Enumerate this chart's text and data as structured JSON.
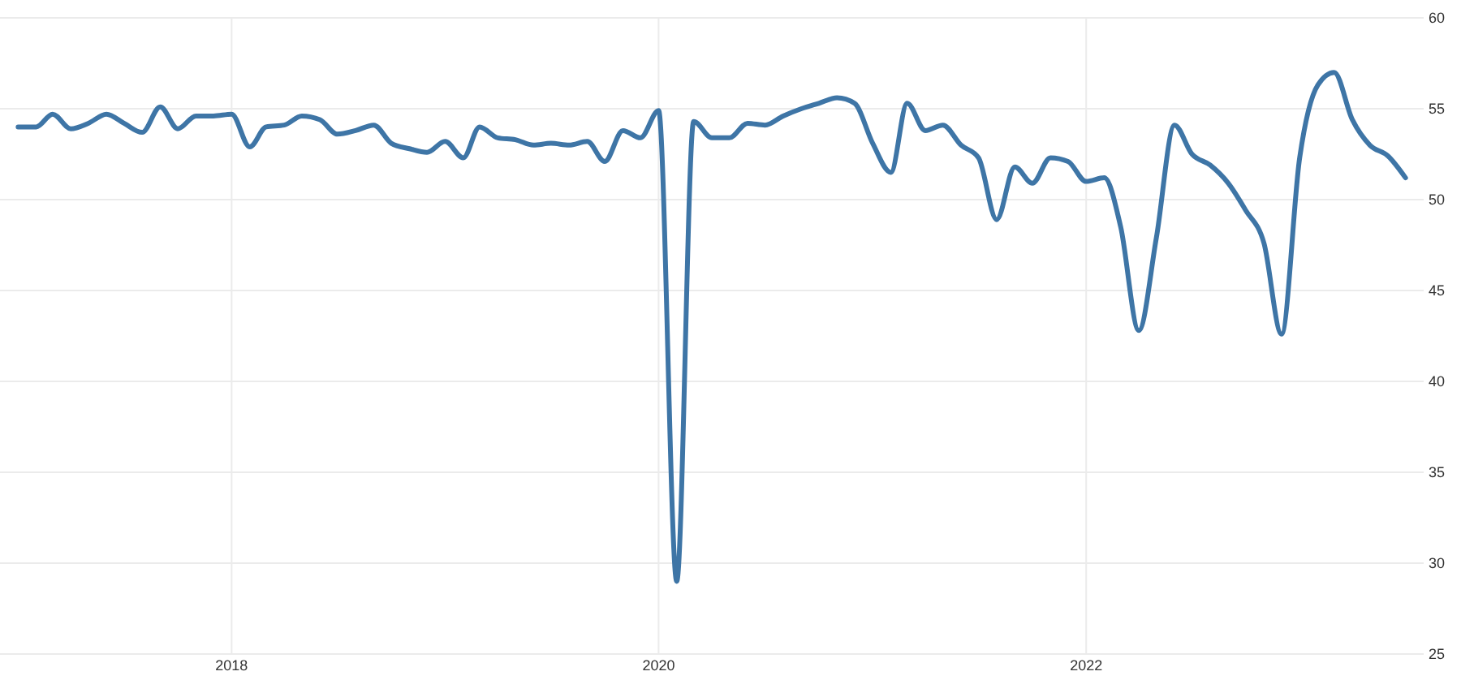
{
  "chart_data": {
    "type": "line",
    "xlim": [
      "2016-12",
      "2023-08"
    ],
    "xticks": [
      "2018",
      "2020",
      "2022"
    ],
    "ylim": [
      25,
      60
    ],
    "yticks": [
      25,
      30,
      35,
      40,
      45,
      50,
      55,
      60
    ],
    "grid": true,
    "marker": "none",
    "line_style": "solid",
    "x": [
      "2017-01",
      "2017-02",
      "2017-03",
      "2017-04",
      "2017-05",
      "2017-06",
      "2017-07",
      "2017-08",
      "2017-09",
      "2017-10",
      "2017-11",
      "2017-12",
      "2018-01",
      "2018-02",
      "2018-03",
      "2018-04",
      "2018-05",
      "2018-06",
      "2018-07",
      "2018-08",
      "2018-09",
      "2018-10",
      "2018-11",
      "2018-12",
      "2019-01",
      "2019-02",
      "2019-03",
      "2019-04",
      "2019-05",
      "2019-06",
      "2019-07",
      "2019-08",
      "2019-09",
      "2019-10",
      "2019-11",
      "2019-12",
      "2020-01",
      "2020-02",
      "2020-03",
      "2020-04",
      "2020-05",
      "2020-06",
      "2020-07",
      "2020-08",
      "2020-09",
      "2020-10",
      "2020-11",
      "2020-12",
      "2021-01",
      "2021-02",
      "2021-03",
      "2021-04",
      "2021-05",
      "2021-06",
      "2021-07",
      "2021-08",
      "2021-09",
      "2021-10",
      "2021-11",
      "2021-12",
      "2022-01",
      "2022-02",
      "2022-03",
      "2022-04",
      "2022-05",
      "2022-06",
      "2022-07",
      "2022-08",
      "2022-09",
      "2022-10",
      "2022-11",
      "2022-12",
      "2023-01",
      "2023-02",
      "2023-03",
      "2023-04",
      "2023-05",
      "2023-06",
      "2023-07"
    ],
    "series": [
      {
        "color": "#3e75a6",
        "values": [
          54.0,
          54.0,
          54.7,
          53.9,
          54.2,
          54.7,
          54.2,
          53.7,
          55.1,
          53.9,
          54.6,
          54.6,
          54.7,
          52.9,
          54.0,
          54.1,
          54.6,
          54.4,
          53.6,
          53.8,
          54.1,
          53.1,
          52.8,
          52.6,
          53.2,
          52.3,
          54.0,
          53.4,
          53.3,
          53.0,
          53.1,
          53.0,
          53.2,
          52.1,
          53.8,
          53.4,
          54.9,
          29.0,
          54.3,
          53.4,
          53.4,
          54.2,
          54.1,
          54.6,
          55.0,
          55.3,
          55.6,
          55.3,
          53.1,
          51.5,
          55.3,
          53.8,
          54.1,
          53.0,
          52.3,
          48.9,
          51.8,
          50.9,
          52.3,
          52.1,
          51.0,
          51.2,
          48.5,
          42.8,
          47.9,
          54.1,
          52.5,
          51.9,
          50.9,
          49.4,
          47.6,
          42.6,
          52.3,
          56.3,
          57.0,
          54.4,
          53.0,
          52.4,
          51.2
        ]
      }
    ]
  }
}
